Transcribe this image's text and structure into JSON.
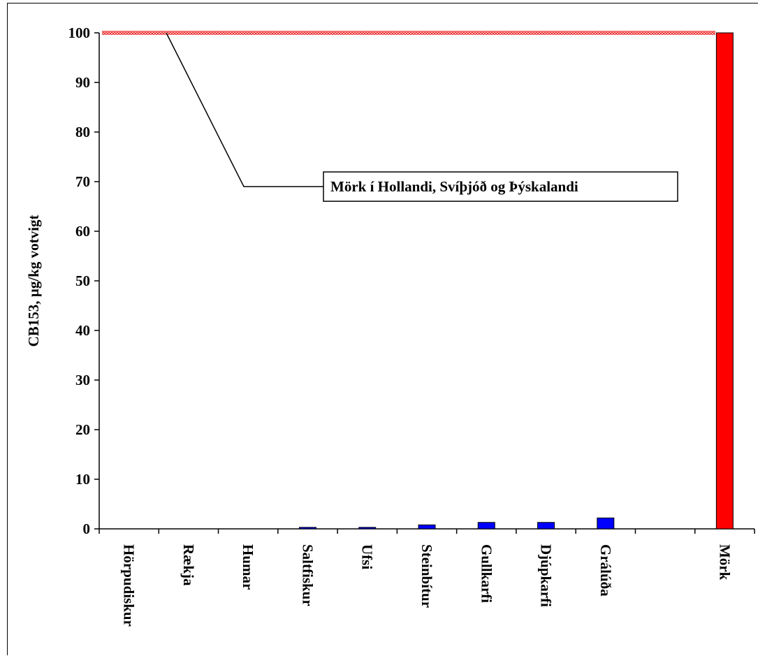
{
  "chart_data": {
    "type": "bar",
    "ylabel": "CB153, µg/kg votvigt",
    "ylim": [
      0,
      100
    ],
    "yticks": [
      0,
      10,
      20,
      30,
      40,
      50,
      60,
      70,
      80,
      90,
      100
    ],
    "categories": [
      "Hörpudiskur",
      "Rækja",
      "Humar",
      "Saltfiskur",
      "Ufsi",
      "Steinbítur",
      "Gullkarfi",
      "Djúpkarfi",
      "Grálúða",
      "",
      "Mörk"
    ],
    "values": [
      0,
      0,
      0,
      0.3,
      0.3,
      0.8,
      1.3,
      1.3,
      2.2,
      null,
      100
    ],
    "bar_colors": [
      "#0000ff",
      "#0000ff",
      "#0000ff",
      "#0000ff",
      "#0000ff",
      "#0000ff",
      "#0000ff",
      "#0000ff",
      "#0000ff",
      "#0000ff",
      "#ff0000"
    ],
    "reference_line": {
      "value": 100,
      "color": "#ff8080"
    },
    "annotation": {
      "text": "Mörk í Hollandi, Svíþjóð og Þýskalandi",
      "points_to_y": 100,
      "label_y": 69
    },
    "grid": false,
    "legend": "none"
  }
}
